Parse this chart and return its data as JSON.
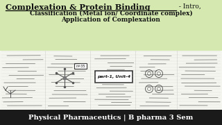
{
  "bg_color": "#d4e8b0",
  "footer_bg": "#1a1a1a",
  "title_line1": "Complexation & Protein Binding",
  "title_suffix": " - Intro,",
  "title_line2": "Classification (Metal ion/ Coordinate complex)",
  "title_line3": "Application of Complexation",
  "footer_text": "Physical Pharmaceutics | B pharma 3 Sem",
  "part_label": "part-1, Unit-4",
  "notebook_bg": "#f5f5f0",
  "notebook_lines": "#c8c8c8",
  "title_color": "#111111",
  "footer_color": "#ffffff"
}
